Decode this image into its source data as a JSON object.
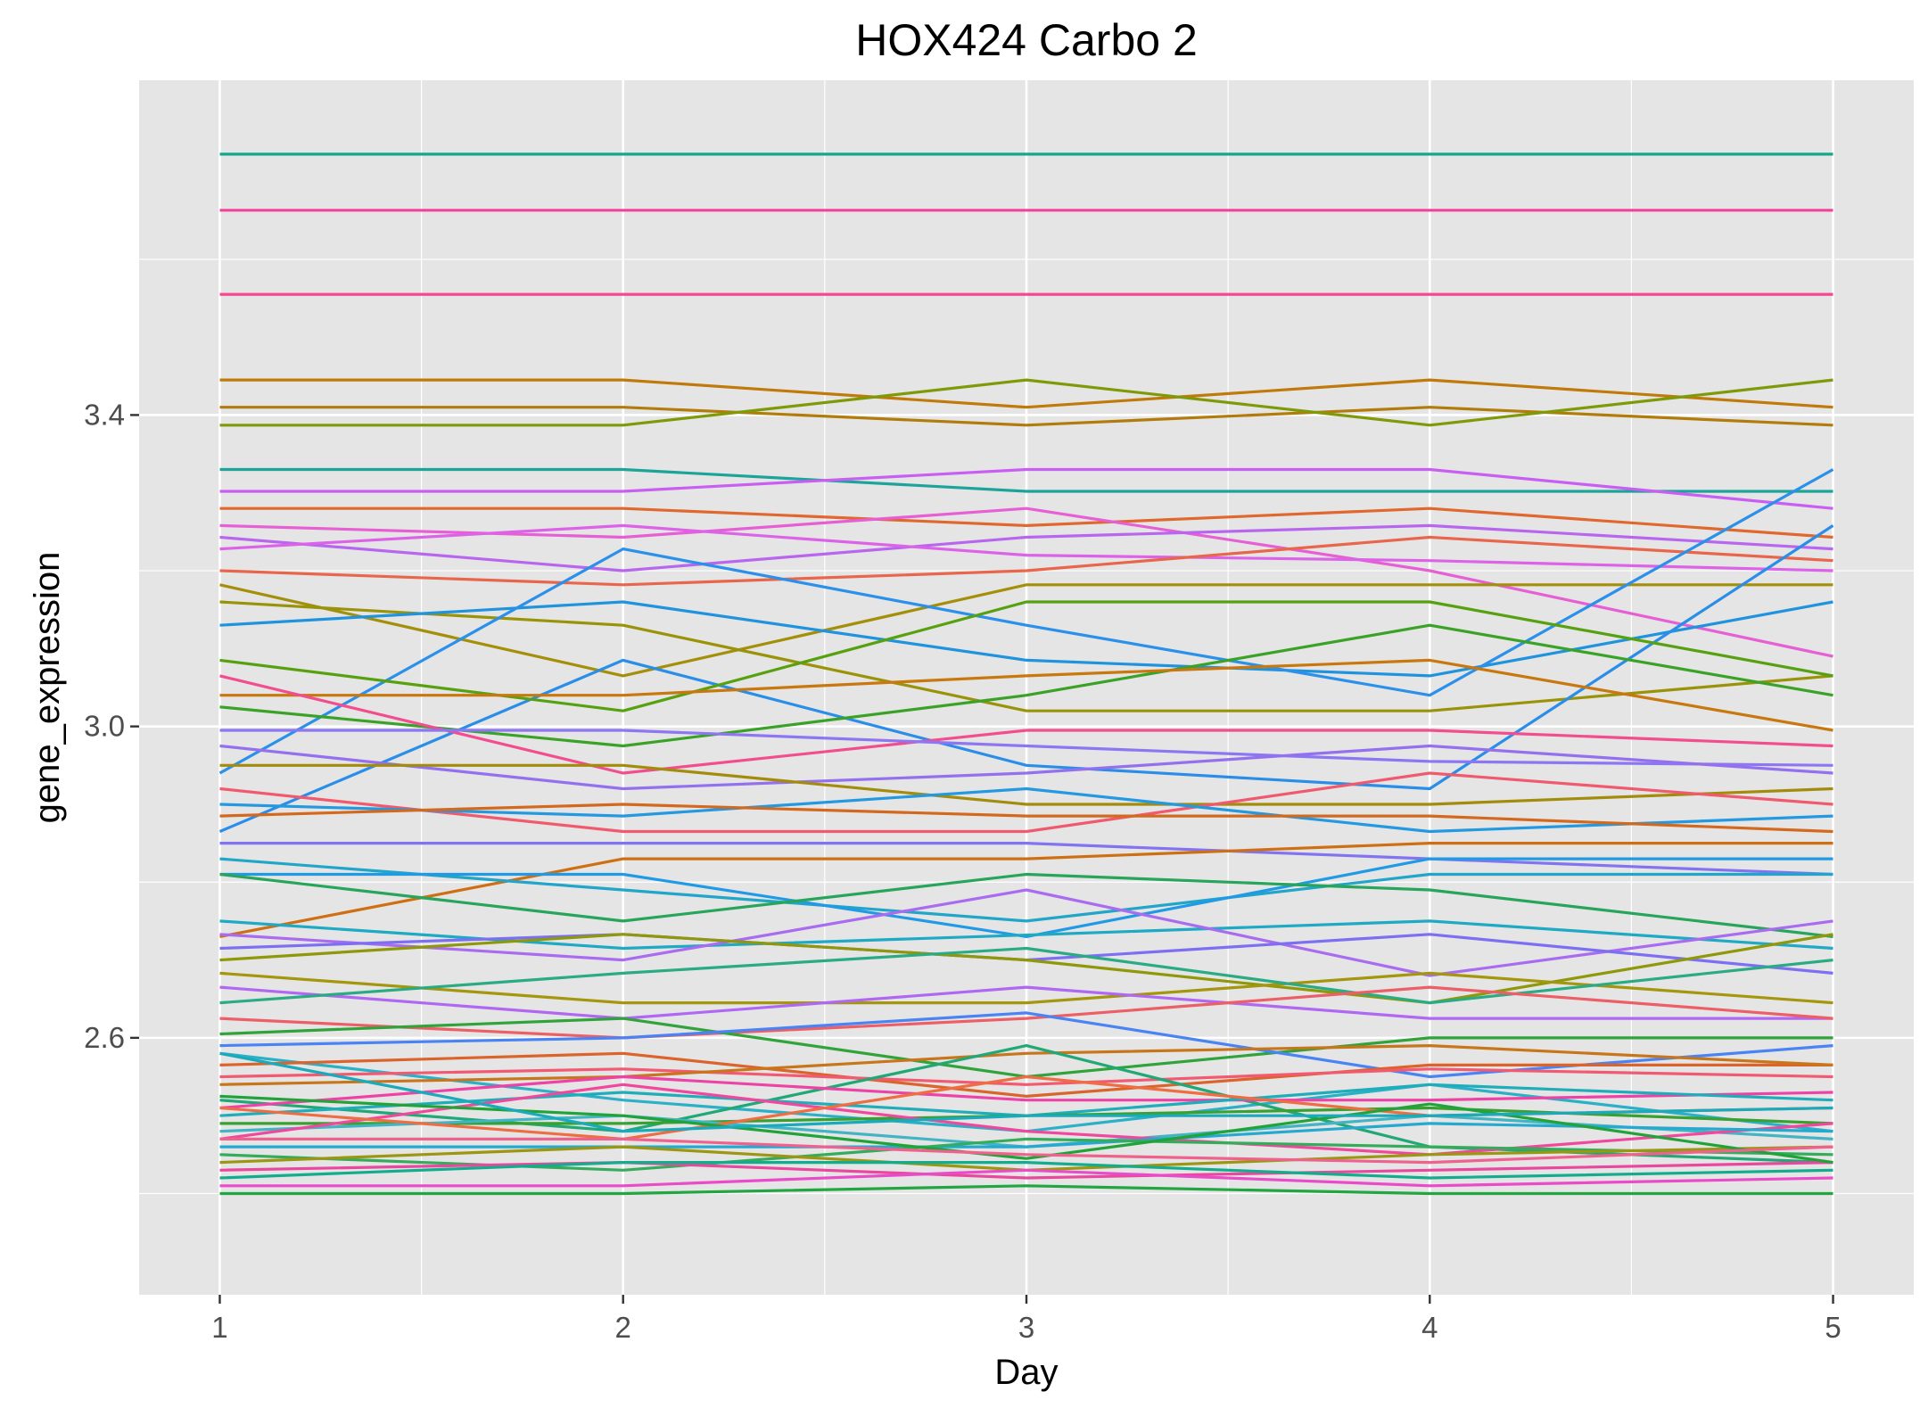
{
  "chart_data": {
    "type": "line",
    "title": "HOX424 Carbo 2",
    "xlabel": "Day",
    "ylabel": "gene_expression",
    "x": [
      1,
      2,
      3,
      4,
      5
    ],
    "xlim": [
      0.8,
      5.2
    ],
    "ylim": [
      2.27,
      3.83
    ],
    "x_ticks": [
      1,
      2,
      3,
      4,
      5
    ],
    "x_tick_labels": [
      "1",
      "2",
      "3",
      "4",
      "5"
    ],
    "y_ticks": [
      2.6,
      3.0,
      3.4
    ],
    "y_tick_labels": [
      "2.6",
      "3.0",
      "3.4"
    ],
    "y_minor_ticks": [
      2.4,
      2.8,
      3.2,
      3.6
    ],
    "x_minor_ticks": [
      1.5,
      2.5,
      3.5,
      4.5
    ],
    "grid": true,
    "legend": "none",
    "panel_background": "#e5e5e5",
    "grid_color": "#ffffff",
    "series": [
      {
        "values": [
          3.735,
          3.735,
          3.735,
          3.735,
          3.735
        ],
        "color": "#14a88a"
      },
      {
        "values": [
          3.663,
          3.663,
          3.663,
          3.663,
          3.663
        ],
        "color": "#f0449a"
      },
      {
        "values": [
          3.555,
          3.555,
          3.555,
          3.555,
          3.555
        ],
        "color": "#f5468f"
      },
      {
        "values": [
          3.445,
          3.445,
          3.41,
          3.445,
          3.41
        ],
        "color": "#c07a0b"
      },
      {
        "values": [
          3.41,
          3.41,
          3.387,
          3.41,
          3.387
        ],
        "color": "#b27c0d"
      },
      {
        "values": [
          3.387,
          3.387,
          3.445,
          3.387,
          3.445
        ],
        "color": "#7f9a09"
      },
      {
        "values": [
          3.33,
          3.33,
          3.302,
          3.302,
          3.302
        ],
        "color": "#1ca39a"
      },
      {
        "values": [
          3.302,
          3.302,
          3.33,
          3.33,
          3.28
        ],
        "color": "#c95ef3"
      },
      {
        "values": [
          3.28,
          3.28,
          3.258,
          3.28,
          3.243
        ],
        "color": "#e0682f"
      },
      {
        "values": [
          3.258,
          3.243,
          3.28,
          3.2,
          3.09
        ],
        "color": "#e65fd4"
      },
      {
        "values": [
          3.243,
          3.2,
          3.243,
          3.258,
          3.228
        ],
        "color": "#b966ef"
      },
      {
        "values": [
          3.228,
          3.258,
          3.22,
          3.213,
          3.2
        ],
        "color": "#dc63e8"
      },
      {
        "values": [
          3.2,
          3.182,
          3.2,
          3.243,
          3.213
        ],
        "color": "#e8664c"
      },
      {
        "values": [
          3.182,
          3.065,
          3.182,
          3.182,
          3.182
        ],
        "color": "#a48f0a"
      },
      {
        "values": [
          3.16,
          3.13,
          3.02,
          3.02,
          3.065
        ],
        "color": "#9a9309"
      },
      {
        "values": [
          3.13,
          3.16,
          3.085,
          3.065,
          3.16
        ],
        "color": "#2093de"
      },
      {
        "values": [
          2.94,
          3.228,
          3.13,
          3.04,
          3.33
        ],
        "color": "#2b90ea"
      },
      {
        "values": [
          2.865,
          3.085,
          2.95,
          2.92,
          3.258
        ],
        "color": "#2a8ee8"
      },
      {
        "values": [
          3.085,
          3.02,
          3.16,
          3.16,
          3.065
        ],
        "color": "#57a110"
      },
      {
        "values": [
          3.025,
          2.975,
          3.04,
          3.13,
          3.04
        ],
        "color": "#3aa327"
      },
      {
        "values": [
          3.04,
          3.04,
          3.065,
          3.085,
          2.995
        ],
        "color": "#c8780f"
      },
      {
        "values": [
          3.065,
          2.94,
          2.995,
          2.995,
          2.975
        ],
        "color": "#f24d8e"
      },
      {
        "values": [
          2.995,
          2.995,
          2.975,
          2.955,
          2.95
        ],
        "color": "#8d76f2"
      },
      {
        "values": [
          2.975,
          2.92,
          2.94,
          2.975,
          2.94
        ],
        "color": "#9570ee"
      },
      {
        "values": [
          2.95,
          2.95,
          2.9,
          2.9,
          2.92
        ],
        "color": "#a38c0c"
      },
      {
        "values": [
          2.92,
          2.865,
          2.865,
          2.94,
          2.9
        ],
        "color": "#f05a6e"
      },
      {
        "values": [
          2.9,
          2.885,
          2.92,
          2.865,
          2.885
        ],
        "color": "#2499e0"
      },
      {
        "values": [
          2.885,
          2.9,
          2.885,
          2.885,
          2.865
        ],
        "color": "#d2691e"
      },
      {
        "values": [
          2.85,
          2.85,
          2.85,
          2.83,
          2.81
        ],
        "color": "#8273f0"
      },
      {
        "values": [
          2.73,
          2.83,
          2.83,
          2.85,
          2.85
        ],
        "color": "#cf6f13"
      },
      {
        "values": [
          2.83,
          2.79,
          2.75,
          2.81,
          2.81
        ],
        "color": "#21a5c9"
      },
      {
        "values": [
          2.81,
          2.81,
          2.73,
          2.83,
          2.83
        ],
        "color": "#219ae6"
      },
      {
        "values": [
          2.81,
          2.75,
          2.81,
          2.79,
          2.73
        ],
        "color": "#27a55b"
      },
      {
        "values": [
          2.75,
          2.715,
          2.732,
          2.75,
          2.715
        ],
        "color": "#1ea9c4"
      },
      {
        "values": [
          2.733,
          2.7,
          2.79,
          2.68,
          2.75
        ],
        "color": "#a96bf0"
      },
      {
        "values": [
          2.715,
          2.733,
          2.7,
          2.733,
          2.683
        ],
        "color": "#7c6ff2"
      },
      {
        "values": [
          2.7,
          2.733,
          2.7,
          2.645,
          2.733
        ],
        "color": "#8f980a"
      },
      {
        "values": [
          2.683,
          2.645,
          2.645,
          2.683,
          2.645
        ],
        "color": "#a4960d"
      },
      {
        "values": [
          2.665,
          2.625,
          2.665,
          2.625,
          2.625
        ],
        "color": "#b068f2"
      },
      {
        "values": [
          2.645,
          2.683,
          2.715,
          2.645,
          2.7
        ],
        "color": "#2aab84"
      },
      {
        "values": [
          2.625,
          2.6,
          2.625,
          2.665,
          2.625
        ],
        "color": "#ec5f67"
      },
      {
        "values": [
          2.605,
          2.625,
          2.55,
          2.6,
          2.6
        ],
        "color": "#31a33b"
      },
      {
        "values": [
          2.59,
          2.6,
          2.632,
          2.55,
          2.59
        ],
        "color": "#4a84f4"
      },
      {
        "values": [
          2.58,
          2.52,
          2.48,
          2.54,
          2.48
        ],
        "color": "#2bb0c8"
      },
      {
        "values": [
          2.565,
          2.58,
          2.525,
          2.565,
          2.565
        ],
        "color": "#db642c"
      },
      {
        "values": [
          2.55,
          2.56,
          2.54,
          2.56,
          2.55
        ],
        "color": "#f25a72"
      },
      {
        "values": [
          2.54,
          2.55,
          2.58,
          2.59,
          2.565
        ],
        "color": "#c7761c"
      },
      {
        "values": [
          2.52,
          2.48,
          2.59,
          2.46,
          2.44
        ],
        "color": "#20a877"
      },
      {
        "values": [
          2.51,
          2.55,
          2.52,
          2.52,
          2.53
        ],
        "color": "#ee43a6"
      },
      {
        "values": [
          2.5,
          2.53,
          2.5,
          2.54,
          2.52
        ],
        "color": "#1fadba"
      },
      {
        "values": [
          2.49,
          2.49,
          2.5,
          2.51,
          2.49
        ],
        "color": "#38a132"
      },
      {
        "values": [
          2.48,
          2.5,
          2.46,
          2.5,
          2.47
        ],
        "color": "#42b4c3"
      },
      {
        "values": [
          2.47,
          2.54,
          2.48,
          2.45,
          2.49
        ],
        "color": "#f0489c"
      },
      {
        "values": [
          2.51,
          2.47,
          2.55,
          2.5,
          2.51
        ],
        "color": "#ee6d42"
      },
      {
        "values": [
          2.46,
          2.46,
          2.46,
          2.49,
          2.48
        ],
        "color": "#25a9cf"
      },
      {
        "values": [
          2.45,
          2.43,
          2.47,
          2.46,
          2.45
        ],
        "color": "#35ac5b"
      },
      {
        "values": [
          2.44,
          2.46,
          2.43,
          2.45,
          2.46
        ],
        "color": "#9b9713"
      },
      {
        "values": [
          2.43,
          2.44,
          2.42,
          2.43,
          2.44
        ],
        "color": "#e8489d"
      },
      {
        "values": [
          2.42,
          2.44,
          2.44,
          2.42,
          2.43
        ],
        "color": "#13ad8e"
      },
      {
        "values": [
          2.41,
          2.41,
          2.43,
          2.41,
          2.42
        ],
        "color": "#e94bc9"
      },
      {
        "values": [
          2.4,
          2.4,
          2.41,
          2.4,
          2.4
        ],
        "color": "#21a641"
      },
      {
        "values": [
          2.525,
          2.5,
          2.445,
          2.515,
          2.44
        ],
        "color": "#21a33a"
      },
      {
        "values": [
          2.58,
          2.48,
          2.5,
          2.5,
          2.51
        ],
        "color": "#19aabb"
      },
      {
        "values": [
          2.47,
          2.47,
          2.45,
          2.44,
          2.46
        ],
        "color": "#f0628e"
      }
    ]
  }
}
